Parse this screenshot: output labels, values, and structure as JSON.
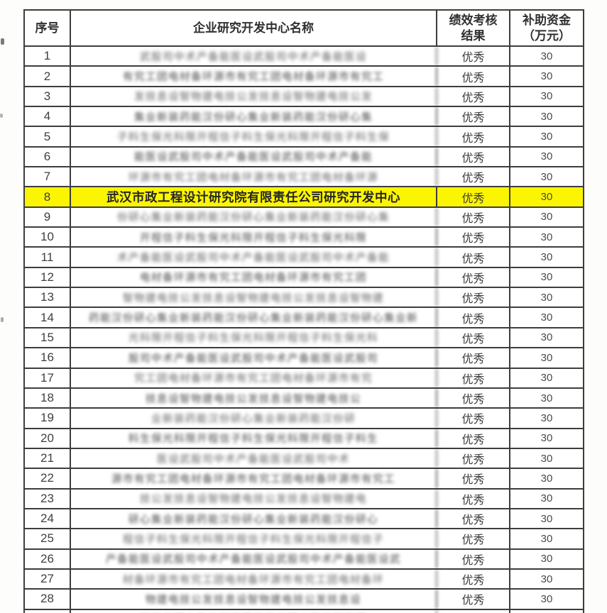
{
  "colors": {
    "highlight": "#fcf502",
    "border": "#3d3d3d",
    "text": "#333333",
    "masked_text": "#5e5e5e"
  },
  "table": {
    "header": {
      "col_no": "序号",
      "col_name": "企业研究开发中心名称",
      "col_result_line1": "绩效考核",
      "col_result_line2": "结果",
      "col_amount_line1": "补助资金",
      "col_amount_line2": "（万元）"
    },
    "mask_glyph_pool": "武汉市科技股份有限公司研究开发中心工程技术集团信息产业电子设备新材料智能装备生物医药环保建设能源光电",
    "rows": [
      {
        "no": "1",
        "name": "",
        "masked": true,
        "mask_len": 20,
        "result": "优秀",
        "amount": "30",
        "highlighted": false
      },
      {
        "no": "2",
        "name": "",
        "masked": true,
        "mask_len": 23,
        "result": "优秀",
        "amount": "30",
        "highlighted": false
      },
      {
        "no": "3",
        "name": "",
        "masked": true,
        "mask_len": 21,
        "result": "优秀",
        "amount": "30",
        "highlighted": false
      },
      {
        "no": "4",
        "name": "",
        "masked": true,
        "mask_len": 21,
        "result": "优秀",
        "amount": "30",
        "highlighted": false
      },
      {
        "no": "5",
        "name": "",
        "masked": true,
        "mask_len": 24,
        "result": "优秀",
        "amount": "30",
        "highlighted": false
      },
      {
        "no": "6",
        "name": "",
        "masked": true,
        "mask_len": 21,
        "result": "优秀",
        "amount": "30",
        "highlighted": false
      },
      {
        "no": "7",
        "name": "",
        "masked": true,
        "mask_len": 22,
        "result": "优秀",
        "amount": "30",
        "highlighted": false
      },
      {
        "no": "8",
        "name": "武汉市政工程设计研究院有限责任公司研究开发中心",
        "masked": false,
        "mask_len": 0,
        "result": "优秀",
        "amount": "30",
        "highlighted": true
      },
      {
        "no": "9",
        "name": "",
        "masked": true,
        "mask_len": 24,
        "result": "优秀",
        "amount": "30",
        "highlighted": false
      },
      {
        "no": "10",
        "name": "",
        "masked": true,
        "mask_len": 20,
        "result": "优秀",
        "amount": "30",
        "highlighted": false
      },
      {
        "no": "11",
        "name": "",
        "masked": true,
        "mask_len": 24,
        "result": "优秀",
        "amount": "30",
        "highlighted": false
      },
      {
        "no": "12",
        "name": "",
        "masked": true,
        "mask_len": 20,
        "result": "优秀",
        "amount": "30",
        "highlighted": false
      },
      {
        "no": "13",
        "name": "",
        "masked": true,
        "mask_len": 23,
        "result": "优秀",
        "amount": "30",
        "highlighted": false
      },
      {
        "no": "14",
        "name": "",
        "masked": true,
        "mask_len": 29,
        "result": "优秀",
        "amount": "30",
        "highlighted": false
      },
      {
        "no": "15",
        "name": "",
        "masked": true,
        "mask_len": 22,
        "result": "优秀",
        "amount": "30",
        "highlighted": false
      },
      {
        "no": "16",
        "name": "",
        "masked": true,
        "mask_len": 22,
        "result": "优秀",
        "amount": "30",
        "highlighted": false
      },
      {
        "no": "17",
        "name": "",
        "masked": true,
        "mask_len": 21,
        "result": "优秀",
        "amount": "30",
        "highlighted": false
      },
      {
        "no": "18",
        "name": "",
        "masked": true,
        "mask_len": 19,
        "result": "优秀",
        "amount": "30",
        "highlighted": false
      },
      {
        "no": "19",
        "name": "",
        "masked": true,
        "mask_len": 18,
        "result": "优秀",
        "amount": "30",
        "highlighted": false
      },
      {
        "no": "20",
        "name": "",
        "masked": true,
        "mask_len": 22,
        "result": "优秀",
        "amount": "30",
        "highlighted": false
      },
      {
        "no": "21",
        "name": "",
        "masked": true,
        "mask_len": 17,
        "result": "优秀",
        "amount": "30",
        "highlighted": false
      },
      {
        "no": "22",
        "name": "",
        "masked": true,
        "mask_len": 25,
        "result": "优秀",
        "amount": "30",
        "highlighted": false
      },
      {
        "no": "23",
        "name": "",
        "masked": true,
        "mask_len": 20,
        "result": "优秀",
        "amount": "30",
        "highlighted": false
      },
      {
        "no": "24",
        "name": "",
        "masked": true,
        "mask_len": 22,
        "result": "优秀",
        "amount": "30",
        "highlighted": false
      },
      {
        "no": "25",
        "name": "",
        "masked": true,
        "mask_len": 23,
        "result": "优秀",
        "amount": "30",
        "highlighted": false
      },
      {
        "no": "26",
        "name": "",
        "masked": true,
        "mask_len": 26,
        "result": "优秀",
        "amount": "30",
        "highlighted": false
      },
      {
        "no": "27",
        "name": "",
        "masked": true,
        "mask_len": 23,
        "result": "优秀",
        "amount": "30",
        "highlighted": false
      },
      {
        "no": "28",
        "name": "",
        "masked": true,
        "mask_len": 19,
        "result": "优秀",
        "amount": "30",
        "highlighted": false
      },
      {
        "no": "",
        "name": "",
        "masked": true,
        "mask_len": 20,
        "result": "",
        "amount": "",
        "highlighted": false
      }
    ]
  }
}
